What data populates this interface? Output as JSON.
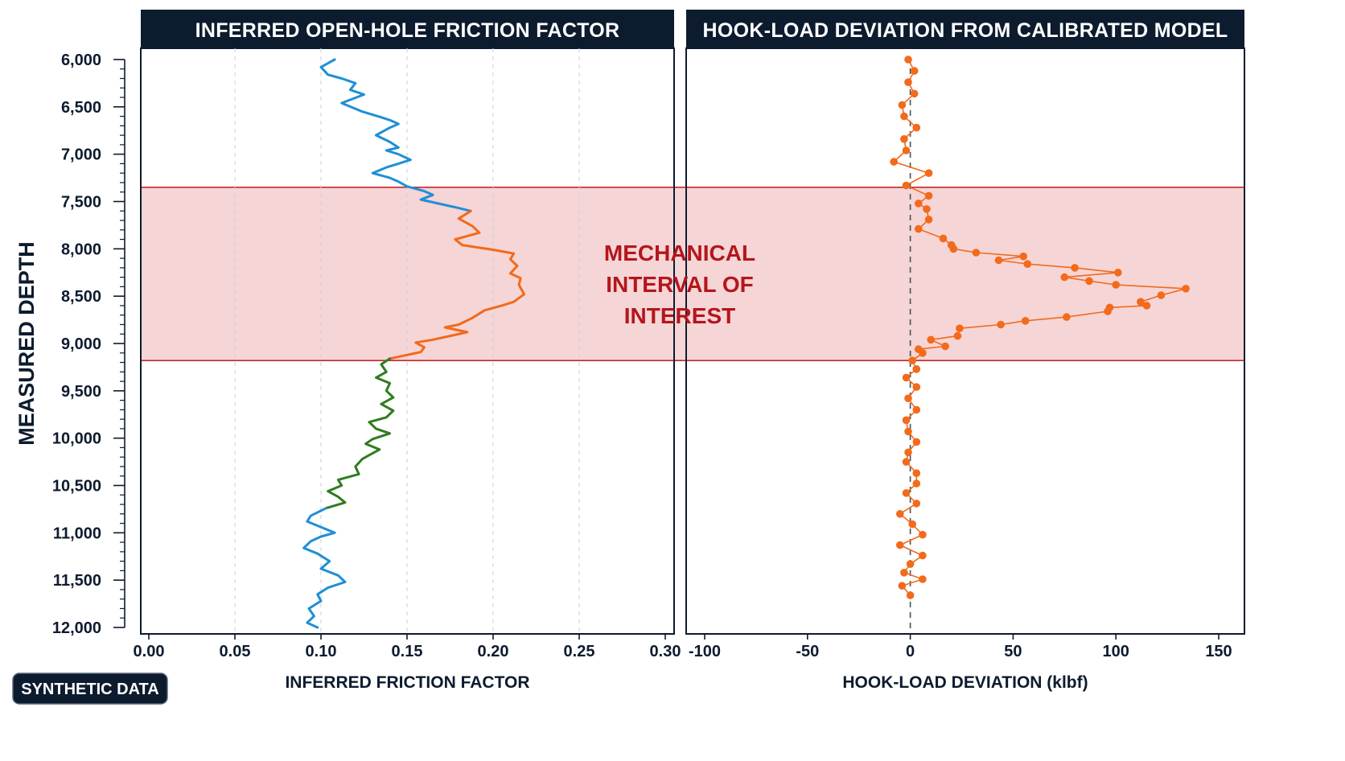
{
  "badge": "SYNTHETIC DATA",
  "colors": {
    "navy": "#0d1b2e",
    "blue": "#1f8fd6",
    "orange": "#f26a1b",
    "green": "#2e7d1e",
    "band_fill": "#f6d5d6",
    "band_edge": "#c2282e",
    "annotation": "#b3161c"
  },
  "chart_data": [
    {
      "type": "line",
      "title": "INFERRED OPEN-HOLE FRICTION FACTOR",
      "xlabel": "INFERRED FRICTION FACTOR",
      "ylabel": "MEASURED DEPTH",
      "xlim": [
        0.0,
        0.3
      ],
      "ylim": [
        6000,
        12000
      ],
      "y_inverted": true,
      "x_ticks": [
        "0.00",
        "0.05",
        "0.10",
        "0.15",
        "0.20",
        "0.25",
        "0.30"
      ],
      "y_ticks": [
        "6,000",
        "6,500",
        "7,000",
        "7,500",
        "8,000",
        "8,500",
        "9,000",
        "9,500",
        "10,000",
        "10,500",
        "11,000",
        "11,500",
        "12,000"
      ],
      "grid": "vertical dashed",
      "series": [
        {
          "color": "blue",
          "points": [
            [
              0.108,
              6000
            ],
            [
              0.1,
              6080
            ],
            [
              0.104,
              6160
            ],
            [
              0.112,
              6200
            ],
            [
              0.12,
              6250
            ],
            [
              0.117,
              6320
            ],
            [
              0.125,
              6370
            ],
            [
              0.112,
              6460
            ],
            [
              0.124,
              6550
            ],
            [
              0.135,
              6610
            ],
            [
              0.14,
              6640
            ],
            [
              0.145,
              6680
            ],
            [
              0.14,
              6720
            ],
            [
              0.132,
              6800
            ],
            [
              0.14,
              6870
            ],
            [
              0.145,
              6930
            ],
            [
              0.138,
              6960
            ],
            [
              0.145,
              7000
            ],
            [
              0.152,
              7060
            ],
            [
              0.145,
              7100
            ],
            [
              0.138,
              7140
            ],
            [
              0.13,
              7200
            ],
            [
              0.14,
              7250
            ],
            [
              0.145,
              7290
            ],
            [
              0.15,
              7340
            ],
            [
              0.16,
              7390
            ],
            [
              0.165,
              7430
            ],
            [
              0.158,
              7480
            ],
            [
              0.168,
              7520
            ],
            [
              0.178,
              7560
            ],
            [
              0.187,
              7600
            ]
          ]
        },
        {
          "color": "orange",
          "points": [
            [
              0.187,
              7600
            ],
            [
              0.18,
              7680
            ],
            [
              0.188,
              7760
            ],
            [
              0.192,
              7830
            ],
            [
              0.178,
              7900
            ],
            [
              0.182,
              7960
            ],
            [
              0.2,
              8010
            ],
            [
              0.212,
              8050
            ],
            [
              0.21,
              8110
            ],
            [
              0.214,
              8180
            ],
            [
              0.21,
              8260
            ],
            [
              0.216,
              8310
            ],
            [
              0.215,
              8380
            ],
            [
              0.218,
              8480
            ],
            [
              0.212,
              8560
            ],
            [
              0.205,
              8600
            ],
            [
              0.195,
              8650
            ],
            [
              0.188,
              8730
            ],
            [
              0.18,
              8800
            ],
            [
              0.172,
              8830
            ],
            [
              0.185,
              8880
            ],
            [
              0.175,
              8920
            ],
            [
              0.165,
              8960
            ],
            [
              0.155,
              8990
            ],
            [
              0.16,
              9040
            ],
            [
              0.158,
              9090
            ],
            [
              0.14,
              9160
            ]
          ]
        },
        {
          "color": "green",
          "points": [
            [
              0.14,
              9160
            ],
            [
              0.135,
              9220
            ],
            [
              0.138,
              9300
            ],
            [
              0.132,
              9360
            ],
            [
              0.14,
              9420
            ],
            [
              0.138,
              9500
            ],
            [
              0.142,
              9570
            ],
            [
              0.135,
              9640
            ],
            [
              0.142,
              9710
            ],
            [
              0.138,
              9780
            ],
            [
              0.128,
              9830
            ],
            [
              0.132,
              9900
            ],
            [
              0.14,
              9950
            ],
            [
              0.13,
              10010
            ],
            [
              0.126,
              10060
            ],
            [
              0.134,
              10120
            ],
            [
              0.128,
              10180
            ],
            [
              0.124,
              10220
            ],
            [
              0.12,
              10300
            ],
            [
              0.122,
              10380
            ],
            [
              0.11,
              10440
            ],
            [
              0.112,
              10500
            ],
            [
              0.104,
              10560
            ],
            [
              0.11,
              10620
            ],
            [
              0.114,
              10680
            ],
            [
              0.103,
              10740
            ]
          ]
        },
        {
          "color": "blue",
          "points": [
            [
              0.103,
              10740
            ],
            [
              0.094,
              10820
            ],
            [
              0.092,
              10880
            ],
            [
              0.1,
              10940
            ],
            [
              0.108,
              11000
            ],
            [
              0.1,
              11040
            ],
            [
              0.094,
              11090
            ],
            [
              0.09,
              11160
            ],
            [
              0.098,
              11220
            ],
            [
              0.105,
              11300
            ],
            [
              0.1,
              11380
            ],
            [
              0.11,
              11450
            ],
            [
              0.114,
              11520
            ],
            [
              0.104,
              11580
            ],
            [
              0.098,
              11650
            ],
            [
              0.1,
              11720
            ],
            [
              0.093,
              11800
            ],
            [
              0.096,
              11880
            ],
            [
              0.092,
              11950
            ],
            [
              0.098,
              12000
            ]
          ]
        }
      ]
    },
    {
      "type": "line",
      "title": "HOOK-LOAD DEVIATION FROM CALIBRATED MODEL",
      "xlabel": "HOOK-LOAD DEVIATION (klbf)",
      "xlim": [
        -100,
        150
      ],
      "ylim": [
        6000,
        12000
      ],
      "y_inverted": true,
      "x_ticks": [
        "-100",
        "-50",
        "0",
        "50",
        "100",
        "150"
      ],
      "reference_line": 0,
      "series": [
        {
          "color": "orange",
          "markers": true,
          "points": [
            [
              -1,
              6000
            ],
            [
              2,
              6120
            ],
            [
              -1,
              6240
            ],
            [
              2,
              6360
            ],
            [
              -4,
              6480
            ],
            [
              -3,
              6600
            ],
            [
              3,
              6720
            ],
            [
              -3,
              6840
            ],
            [
              -2,
              6960
            ],
            [
              -8,
              7080
            ],
            [
              9,
              7200
            ],
            [
              -2,
              7330
            ],
            [
              9,
              7440
            ],
            [
              4,
              7520
            ],
            [
              8,
              7580
            ],
            [
              9,
              7690
            ],
            [
              4,
              7790
            ],
            [
              16,
              7890
            ],
            [
              20,
              7960
            ],
            [
              21,
              8000
            ],
            [
              32,
              8040
            ],
            [
              55,
              8080
            ],
            [
              43,
              8120
            ],
            [
              57,
              8160
            ],
            [
              80,
              8200
            ],
            [
              101,
              8250
            ],
            [
              75,
              8300
            ],
            [
              87,
              8340
            ],
            [
              100,
              8380
            ],
            [
              134,
              8420
            ],
            [
              122,
              8490
            ],
            [
              112,
              8560
            ],
            [
              115,
              8600
            ],
            [
              97,
              8620
            ],
            [
              96,
              8660
            ],
            [
              76,
              8720
            ],
            [
              56,
              8760
            ],
            [
              44,
              8800
            ],
            [
              24,
              8840
            ],
            [
              23,
              8920
            ],
            [
              10,
              8960
            ],
            [
              17,
              9030
            ],
            [
              4,
              9060
            ],
            [
              6,
              9100
            ],
            [
              1,
              9180
            ],
            [
              3,
              9270
            ],
            [
              -2,
              9360
            ],
            [
              3,
              9460
            ],
            [
              -1,
              9580
            ],
            [
              3,
              9700
            ],
            [
              -2,
              9810
            ],
            [
              -1,
              9930
            ],
            [
              3,
              10040
            ],
            [
              -1,
              10150
            ],
            [
              -2,
              10250
            ],
            [
              3,
              10370
            ],
            [
              3,
              10480
            ],
            [
              -2,
              10580
            ],
            [
              3,
              10690
            ],
            [
              -5,
              10800
            ],
            [
              1,
              10910
            ],
            [
              6,
              11020
            ],
            [
              -5,
              11130
            ],
            [
              6,
              11240
            ],
            [
              0,
              11330
            ],
            [
              -3,
              11420
            ],
            [
              6,
              11490
            ],
            [
              -4,
              11560
            ],
            [
              0,
              11660
            ]
          ]
        }
      ]
    }
  ],
  "annotation": {
    "lines": [
      "MECHANICAL",
      "INTERVAL OF",
      "INTEREST"
    ],
    "band_top": 7350,
    "band_bottom": 9180
  }
}
